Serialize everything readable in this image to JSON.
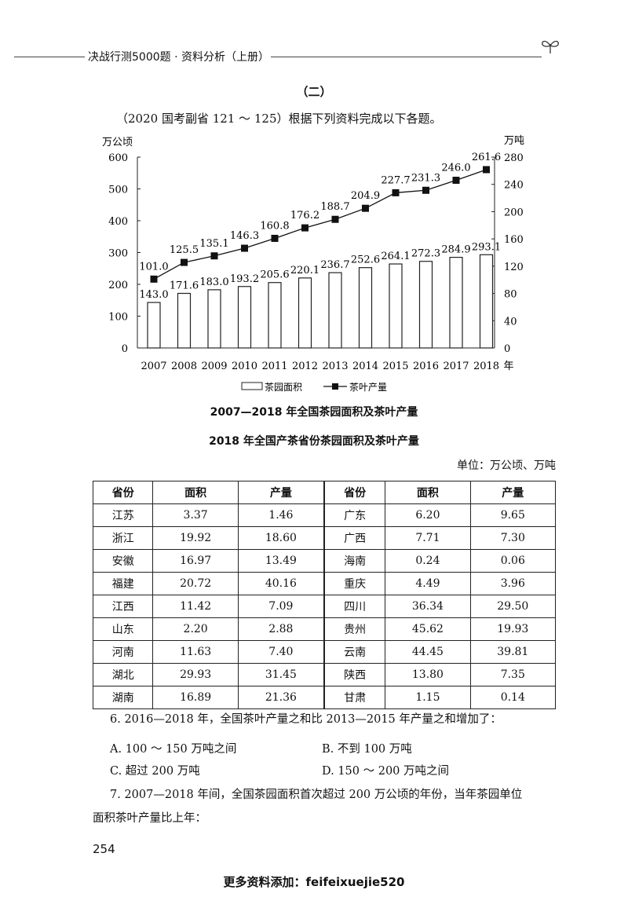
{
  "header": {
    "book_title": "决战行测5000题 · 资料分析（上册）"
  },
  "section": "（二）",
  "intro": "（2020 国考副省 121 ～ 125）根据下列资料完成以下各题。",
  "chart_data": {
    "type": "bar+line",
    "title": "2007—2018 年全国茶园面积及茶叶产量",
    "categories": [
      "2007",
      "2008",
      "2009",
      "2010",
      "2011",
      "2012",
      "2013",
      "2014",
      "2015",
      "2016",
      "2017",
      "2018"
    ],
    "x_unit": "年",
    "left_axis": {
      "label": "万公顷",
      "range": [
        0,
        600
      ],
      "ticks": [
        "0",
        "100",
        "200",
        "300",
        "400",
        "500",
        "600"
      ]
    },
    "right_axis": {
      "label": "万吨",
      "range": [
        0,
        280
      ],
      "ticks": [
        "0",
        "40",
        "80",
        "120",
        "160",
        "200",
        "240",
        "280"
      ]
    },
    "series": [
      {
        "name": "茶园面积",
        "type": "bar",
        "axis": "left",
        "values": [
          143.0,
          171.6,
          183.0,
          193.2,
          205.6,
          220.1,
          236.7,
          252.6,
          264.1,
          272.3,
          284.9,
          293.1
        ],
        "labels": [
          "143.0",
          "171.6",
          "183.0",
          "193.2",
          "205.6",
          "220.1",
          "236.7",
          "252.6",
          "264.1",
          "272.3",
          "284.9",
          "293.1"
        ]
      },
      {
        "name": "茶叶产量",
        "type": "line",
        "axis": "right",
        "values": [
          101.0,
          125.5,
          135.1,
          146.3,
          160.8,
          176.2,
          188.7,
          204.9,
          227.7,
          231.3,
          246.0,
          261.6
        ],
        "labels": [
          "101.0",
          "125.5",
          "135.1",
          "146.3",
          "160.8",
          "176.2",
          "188.7",
          "204.9",
          "227.7",
          "231.3",
          "246.0",
          "261.6"
        ]
      }
    ],
    "legend": "bottom"
  },
  "table": {
    "title": "2018 年全国产茶省份茶园面积及茶叶产量",
    "unit": "单位：万公顷、万吨",
    "headers": [
      "省份",
      "面积",
      "产量",
      "省份",
      "面积",
      "产量"
    ],
    "rows": [
      [
        "江苏",
        "3.37",
        "1.46",
        "广东",
        "6.20",
        "9.65"
      ],
      [
        "浙江",
        "19.92",
        "18.60",
        "广西",
        "7.71",
        "7.30"
      ],
      [
        "安徽",
        "16.97",
        "13.49",
        "海南",
        "0.24",
        "0.06"
      ],
      [
        "福建",
        "20.72",
        "40.16",
        "重庆",
        "4.49",
        "3.96"
      ],
      [
        "江西",
        "11.42",
        "7.09",
        "四川",
        "36.34",
        "29.50"
      ],
      [
        "山东",
        "2.20",
        "2.88",
        "贵州",
        "45.62",
        "19.93"
      ],
      [
        "河南",
        "11.63",
        "7.40",
        "云南",
        "44.45",
        "39.81"
      ],
      [
        "湖北",
        "29.93",
        "31.45",
        "陕西",
        "13.80",
        "7.35"
      ],
      [
        "湖南",
        "16.89",
        "21.36",
        "甘肃",
        "1.15",
        "0.14"
      ]
    ]
  },
  "questions": {
    "q6": "6. 2016—2018 年，全国茶叶产量之和比 2013—2015 年产量之和增加了：",
    "q6a": "A. 100 ～ 150 万吨之间",
    "q6b": "B. 不到 100 万吨",
    "q6c": "C. 超过 200 万吨",
    "q6d": "D. 150 ～ 200 万吨之间",
    "q7_l1": "7. 2007—2018 年间，全国茶园面积首次超过 200 万公顷的年份，当年茶园单位",
    "q7_l2": "面积茶叶产量比上年："
  },
  "page_number": "254",
  "footer": "更多资料添加：feifeixuejie520"
}
